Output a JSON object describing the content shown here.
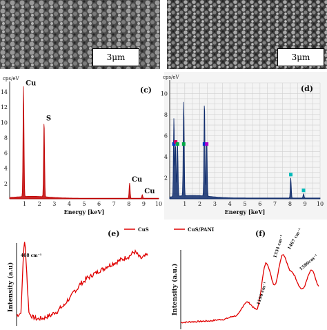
{
  "sem_top": {
    "left_scale": "3μm",
    "right_scale": "3μm"
  },
  "chart_data": [
    {
      "panel": "(c)",
      "type": "line",
      "title": "",
      "unit_label": "cps/eV",
      "xlabel": "Energy [keV]",
      "ylabel": "",
      "xlim": [
        0,
        10
      ],
      "ylim": [
        0,
        15
      ],
      "x_ticks": [
        "1",
        "2",
        "3",
        "4",
        "5",
        "6",
        "7",
        "8",
        "9",
        "10"
      ],
      "y_ticks": [
        "2",
        "4",
        "6",
        "8",
        "10",
        "12",
        "14"
      ],
      "color": "#c00000",
      "peaks": [
        {
          "x": 0.93,
          "y": 14.6,
          "label": "Cu"
        },
        {
          "x": 2.31,
          "y": 10.0,
          "label": "S"
        },
        {
          "x": 8.05,
          "y": 2.0,
          "label": "Cu"
        },
        {
          "x": 8.9,
          "y": 0.45,
          "label": "Cu"
        }
      ],
      "annotations": [
        "Cu",
        "S",
        "Cu",
        "Cu"
      ]
    },
    {
      "panel": "(d)",
      "type": "line",
      "title": "",
      "unit_label": "cps/eV",
      "xlabel": "Energy [keV]",
      "ylabel": "",
      "xlim": [
        0,
        10
      ],
      "ylim": [
        0,
        11
      ],
      "x_ticks": [
        "1",
        "2",
        "3",
        "4",
        "5",
        "6",
        "7",
        "8",
        "9",
        "10"
      ],
      "y_ticks": [
        "2",
        "4",
        "6",
        "8",
        "10"
      ],
      "color": "#0d2a6b",
      "peaks": [
        {
          "x": 0.28,
          "y": 7.5
        },
        {
          "x": 0.39,
          "y": 5.0
        },
        {
          "x": 0.52,
          "y": 5.2
        },
        {
          "x": 0.93,
          "y": 9.0
        },
        {
          "x": 2.31,
          "y": 9.0
        },
        {
          "x": 2.46,
          "y": 5.3
        },
        {
          "x": 8.05,
          "y": 1.9
        },
        {
          "x": 8.9,
          "y": 0.4
        }
      ]
    },
    {
      "panel": "(e)",
      "type": "line",
      "title": "",
      "xlabel": "",
      "ylabel": "Intensity (a.u)",
      "legend": "CuS",
      "legend_position": "top-right",
      "annotations": [
        "468 cm⁻¹"
      ],
      "color": "#e00000",
      "x": [
        0.0,
        0.03,
        0.06,
        0.1,
        0.13,
        0.16,
        0.2,
        0.25,
        0.3,
        0.35,
        0.4,
        0.45,
        0.5,
        0.55,
        0.6,
        0.65,
        0.7,
        0.75,
        0.8,
        0.85,
        0.9,
        0.95,
        1.0
      ],
      "y": [
        0.05,
        0.07,
        1.0,
        0.06,
        0.02,
        0.0,
        0.01,
        0.04,
        0.09,
        0.16,
        0.26,
        0.38,
        0.48,
        0.55,
        0.6,
        0.65,
        0.7,
        0.74,
        0.78,
        0.82,
        0.88,
        0.8,
        0.84
      ]
    },
    {
      "panel": "(f)",
      "type": "line",
      "title": "",
      "xlabel": "",
      "ylabel": "Intensity (a.u.)",
      "legend": "CuS/PANI",
      "legend_position": "top-left",
      "annotations": [
        "1196 cm⁻¹",
        "1334 cm⁻¹",
        "1467 cm⁻¹",
        "1580cm⁻¹"
      ],
      "color": "#e00000",
      "x": [
        0.0,
        0.1,
        0.2,
        0.3,
        0.4,
        0.48,
        0.55,
        0.62,
        0.68,
        0.74,
        0.8,
        0.88,
        0.95,
        1.0
      ],
      "y": [
        0.0,
        0.01,
        0.02,
        0.04,
        0.09,
        0.28,
        0.18,
        0.82,
        0.52,
        0.94,
        0.7,
        0.46,
        0.72,
        0.5
      ]
    }
  ]
}
